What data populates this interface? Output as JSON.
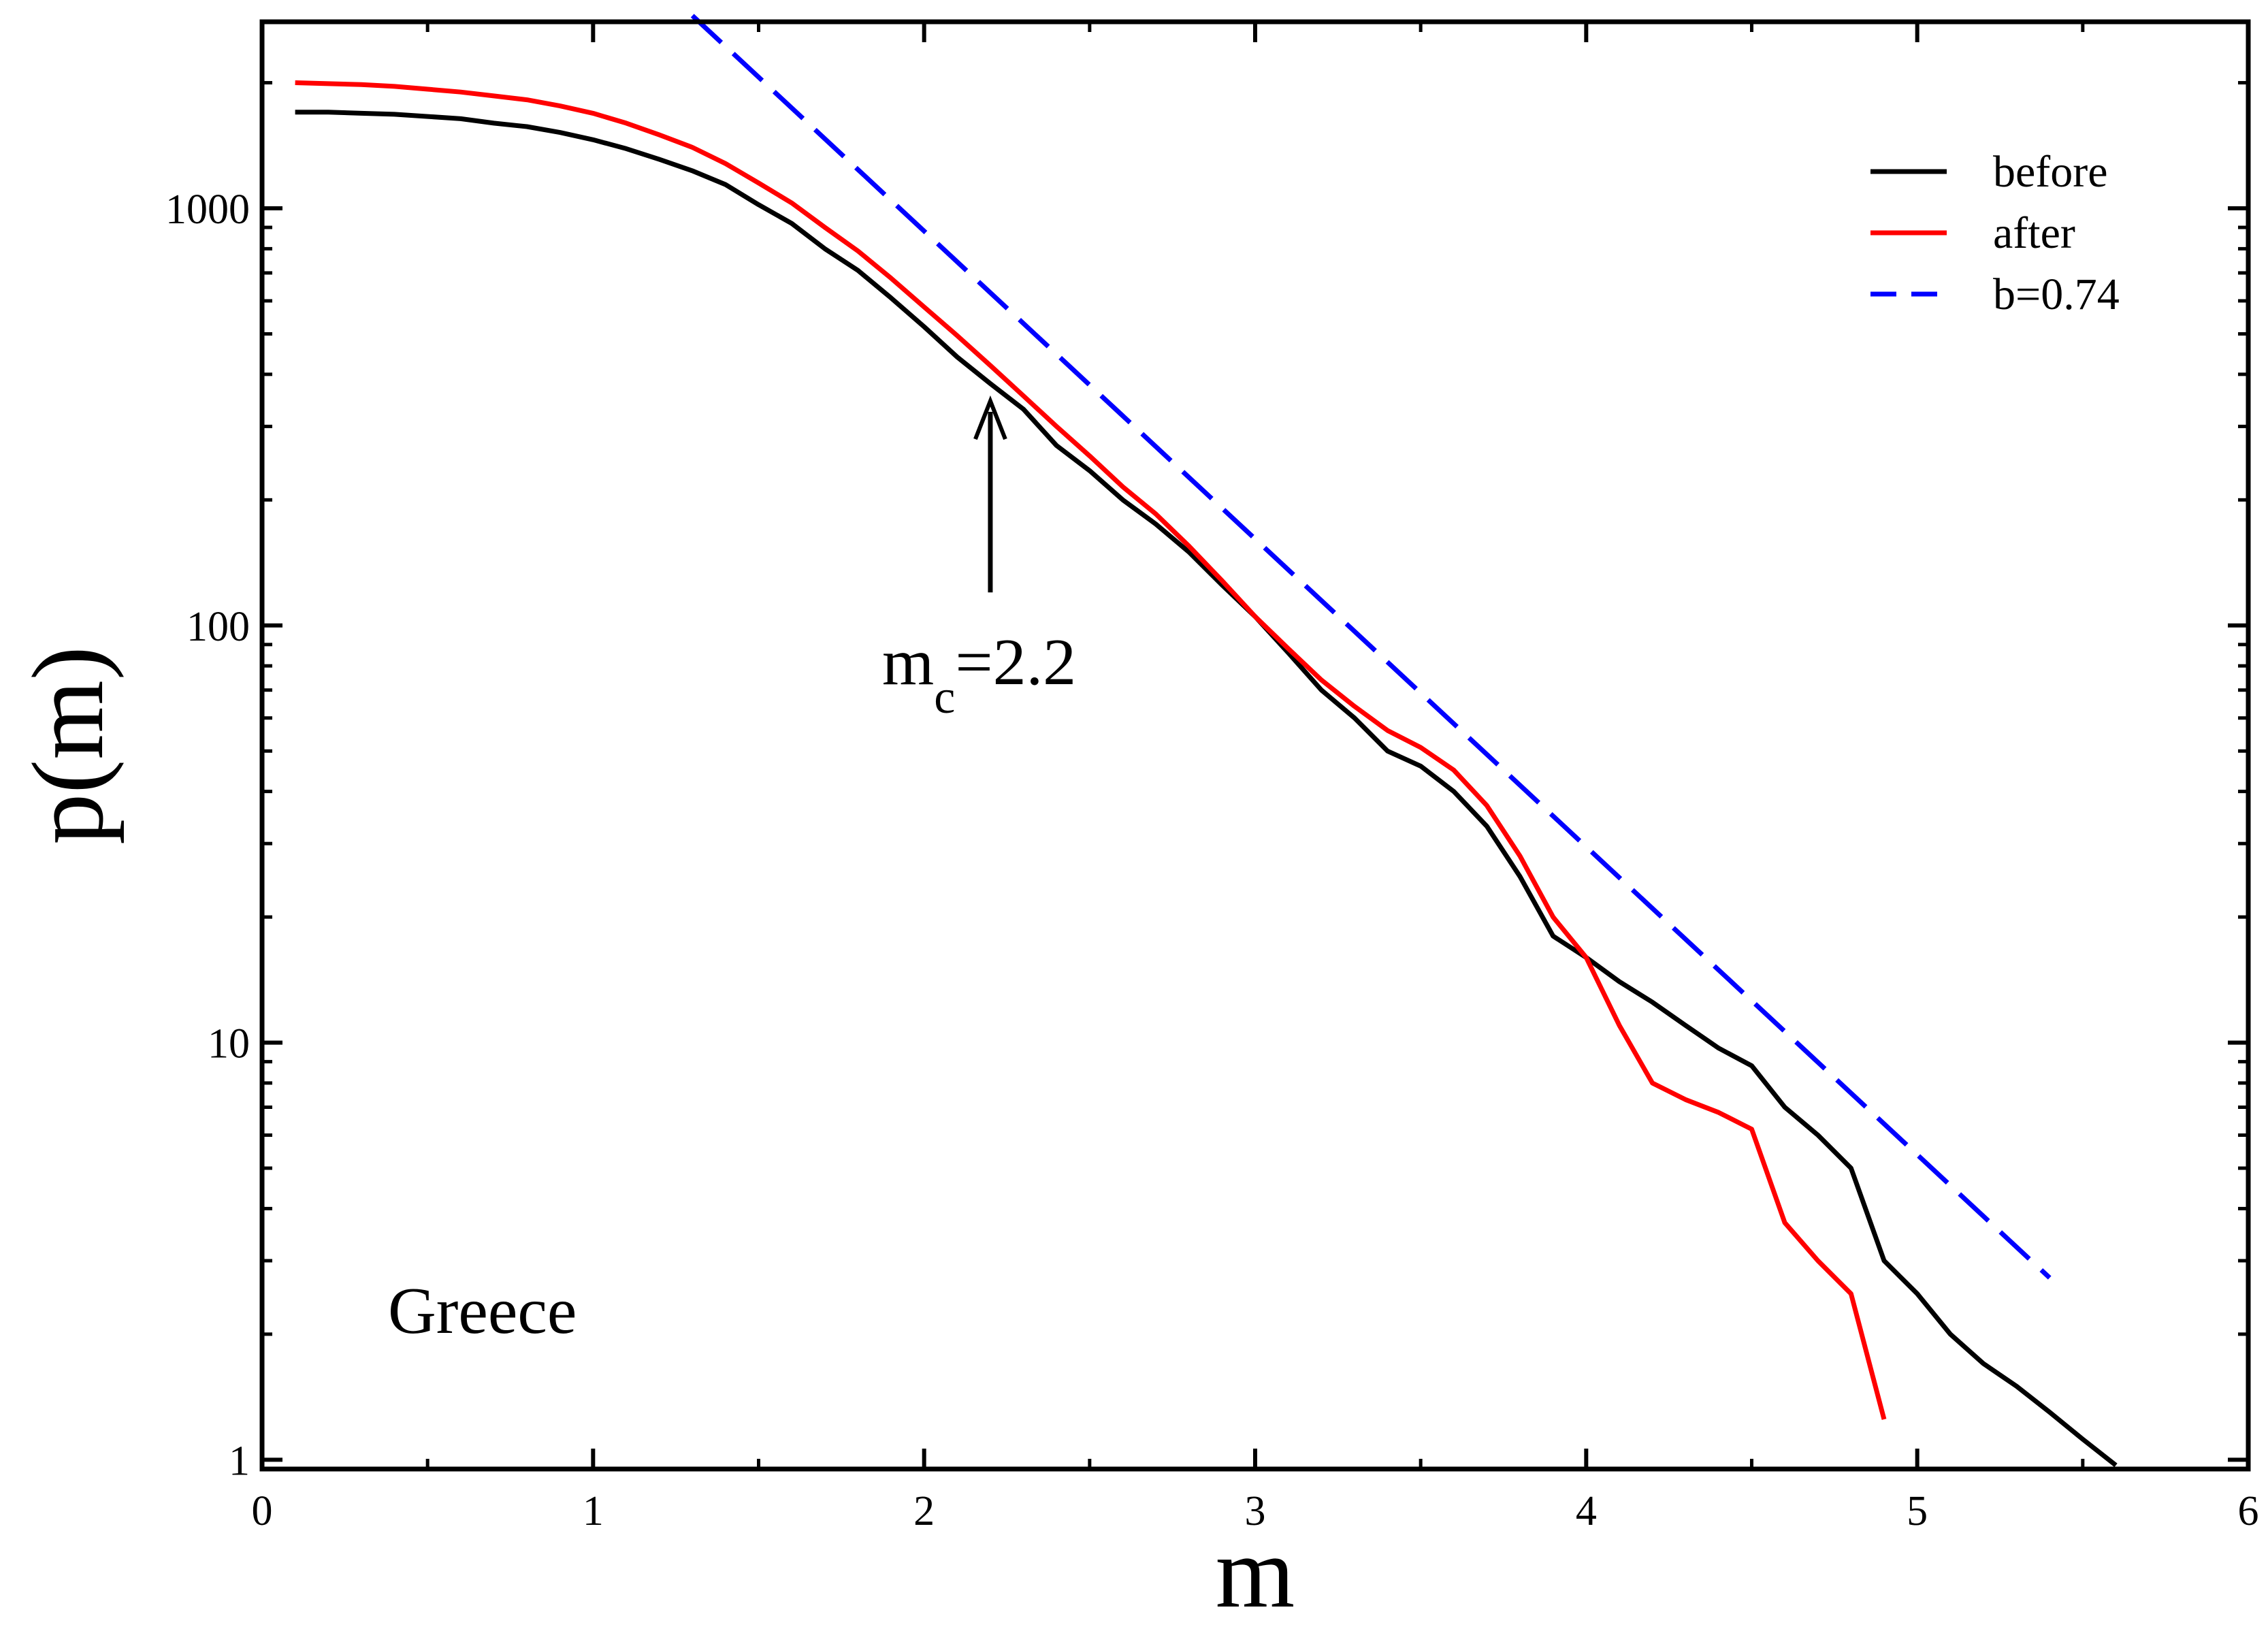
{
  "chart_data": {
    "type": "line",
    "title": "",
    "xlabel": "m",
    "ylabel": "p(m)",
    "xlim": [
      0,
      6
    ],
    "ylim": [
      0.95,
      2800
    ],
    "y_scale": "log",
    "grid": false,
    "legend_position": "top-right",
    "x_ticks": [
      0,
      1,
      2,
      3,
      4,
      5,
      6
    ],
    "x_tick_labels": [
      "0",
      "1",
      "2",
      "3",
      "4",
      "5",
      "6"
    ],
    "y_ticks": [
      1,
      10,
      100,
      1000
    ],
    "y_tick_labels": [
      "1",
      "10",
      "100",
      "1000"
    ],
    "series": [
      {
        "name": "before",
        "color": "#000000",
        "style": "solid",
        "x": [
          0.1,
          0.2,
          0.3,
          0.4,
          0.5,
          0.6,
          0.7,
          0.8,
          0.9,
          1.0,
          1.1,
          1.2,
          1.3,
          1.4,
          1.5,
          1.6,
          1.7,
          1.8,
          1.9,
          2.0,
          2.1,
          2.2,
          2.3,
          2.4,
          2.5,
          2.6,
          2.7,
          2.8,
          2.9,
          3.0,
          3.1,
          3.2,
          3.3,
          3.4,
          3.5,
          3.6,
          3.7,
          3.8,
          3.9,
          4.0,
          4.1,
          4.2,
          4.3,
          4.4,
          4.5,
          4.6,
          4.7,
          4.8,
          4.9,
          5.0,
          5.1,
          5.2,
          5.3,
          5.4,
          5.5,
          5.6
        ],
        "values": [
          1700,
          1700,
          1690,
          1680,
          1660,
          1640,
          1600,
          1570,
          1520,
          1460,
          1390,
          1310,
          1230,
          1140,
          1020,
          920,
          800,
          710,
          610,
          520,
          440,
          380,
          330,
          270,
          235,
          200,
          175,
          150,
          125,
          105,
          86,
          70,
          60,
          50,
          46,
          40,
          33,
          25,
          18,
          16,
          14,
          12.5,
          11,
          9.7,
          8.8,
          7.0,
          6.0,
          5.0,
          3.0,
          2.5,
          2.0,
          1.7,
          1.5,
          1.3,
          1.12,
          0.97
        ]
      },
      {
        "name": "after",
        "color": "#ff0000",
        "style": "solid",
        "x": [
          0.1,
          0.2,
          0.3,
          0.4,
          0.5,
          0.6,
          0.7,
          0.8,
          0.9,
          1.0,
          1.1,
          1.2,
          1.3,
          1.4,
          1.5,
          1.6,
          1.7,
          1.8,
          1.9,
          2.0,
          2.1,
          2.2,
          2.3,
          2.4,
          2.5,
          2.6,
          2.7,
          2.8,
          2.9,
          3.0,
          3.1,
          3.2,
          3.3,
          3.4,
          3.5,
          3.6,
          3.7,
          3.8,
          3.9,
          4.0,
          4.1,
          4.2,
          4.3,
          4.4,
          4.5,
          4.6,
          4.7,
          4.8,
          4.9
        ],
        "values": [
          2000,
          1990,
          1980,
          1960,
          1930,
          1900,
          1860,
          1820,
          1760,
          1690,
          1600,
          1500,
          1400,
          1280,
          1150,
          1030,
          900,
          790,
          680,
          580,
          495,
          420,
          355,
          300,
          255,
          215,
          185,
          155,
          128,
          105,
          88,
          74,
          64,
          56,
          51,
          45,
          37,
          28,
          20,
          16,
          11,
          8.0,
          7.3,
          6.8,
          6.2,
          3.7,
          3.0,
          2.5,
          1.25
        ]
      },
      {
        "name": "b=0.74",
        "color": "#0000ff",
        "style": "dashed",
        "x": [
          1.3,
          5.4
        ],
        "values": [
          2897,
          2.73
        ]
      }
    ],
    "annotations": [
      {
        "text_main": "m",
        "text_sub": "c",
        "text_rest": "=2.2",
        "arrow_x": 2.2,
        "arrow_y_from": 120,
        "arrow_y_to": 330
      },
      {
        "text": "Greece"
      }
    ]
  }
}
